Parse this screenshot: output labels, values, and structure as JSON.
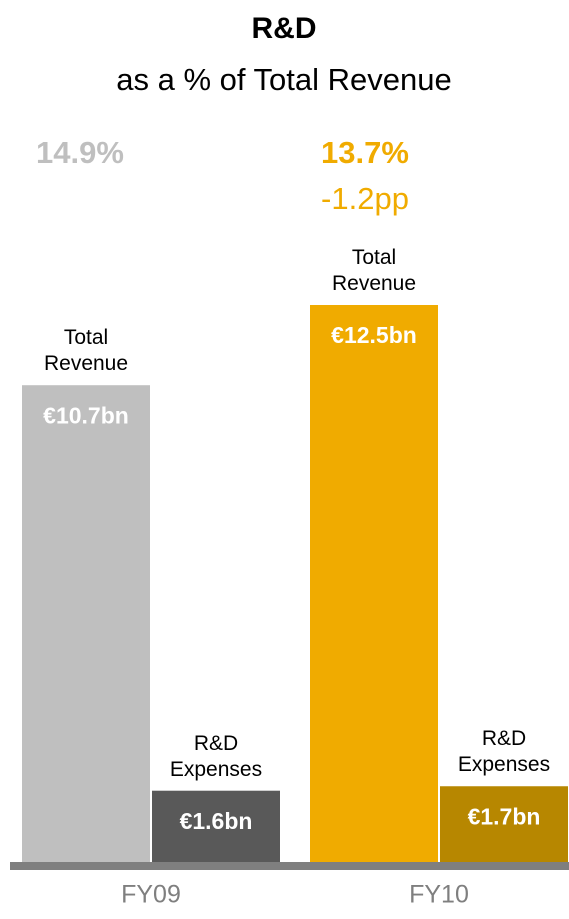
{
  "chart_data": {
    "type": "bar",
    "title": "R&D",
    "subtitle": "as a % of Total Revenue",
    "categories": [
      "FY09",
      "FY10"
    ],
    "series": [
      {
        "name": "Total Revenue",
        "colors": [
          "#bfbfbf",
          "#f0ab00"
        ],
        "values": [
          10.7,
          12.5
        ],
        "value_labels": [
          "€10.7bn",
          "€12.5bn"
        ]
      },
      {
        "name": "R&D Expenses",
        "colors": [
          "#595959",
          "#b78700"
        ],
        "values": [
          1.6,
          1.7
        ],
        "value_labels": [
          "€1.6bn",
          "€1.7bn"
        ]
      }
    ],
    "ratio": {
      "values": [
        14.9,
        13.7
      ],
      "value_labels": [
        "14.9%",
        "13.7%"
      ],
      "colors": [
        "#bfbfbf",
        "#f0ab00"
      ]
    },
    "annotations": [
      "-1.2pp"
    ]
  }
}
